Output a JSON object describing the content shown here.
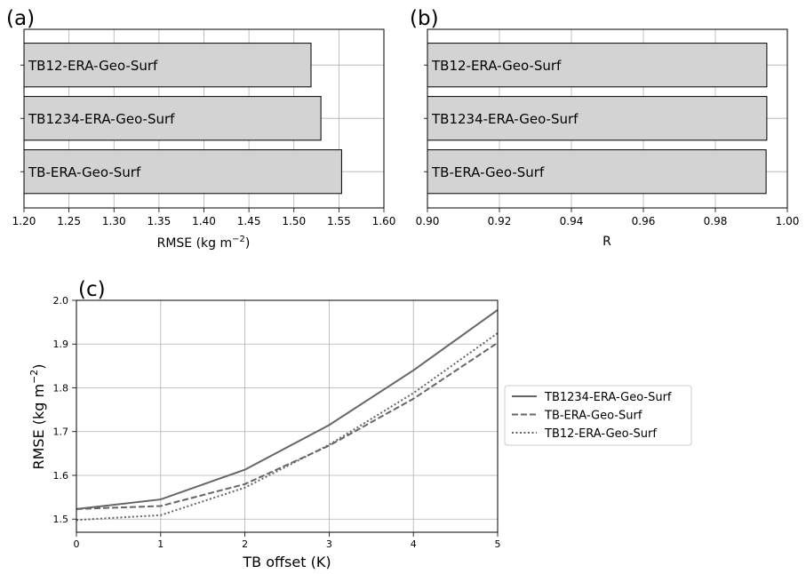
{
  "chart_data": [
    {
      "panel_label": "(a)",
      "type": "bar",
      "orientation": "horizontal",
      "categories": [
        "TB12-ERA-Geo-Surf",
        "TB1234-ERA-Geo-Surf",
        "TB-ERA-Geo-Surf"
      ],
      "values": [
        1.519,
        1.53,
        1.553
      ],
      "xlabel": "RMSE (kg m",
      "xlabel_sup": "−2",
      "xlabel_end": ")",
      "xlim": [
        1.2,
        1.6
      ],
      "xticks": [
        "1.20",
        "1.25",
        "1.30",
        "1.35",
        "1.40",
        "1.45",
        "1.50",
        "1.55",
        "1.60"
      ],
      "grid": true,
      "bar_color": "#d3d3d3"
    },
    {
      "panel_label": "(b)",
      "type": "bar",
      "orientation": "horizontal",
      "categories": [
        "TB12-ERA-Geo-Surf",
        "TB1234-ERA-Geo-Surf",
        "TB-ERA-Geo-Surf"
      ],
      "values": [
        0.9943,
        0.9943,
        0.9941
      ],
      "xlabel": "R",
      "xlim": [
        0.9,
        1.0
      ],
      "xticks": [
        "0.90",
        "0.92",
        "0.94",
        "0.96",
        "0.98",
        "1.00"
      ],
      "grid": true,
      "bar_color": "#d3d3d3"
    },
    {
      "panel_label": "(c)",
      "type": "line",
      "x": [
        0,
        1,
        2,
        3,
        4,
        5
      ],
      "xlabel": "TB offset (K)",
      "ylabel": "RMSE (kg m",
      "ylabel_sup": "−2",
      "ylabel_end": ")",
      "xlim": [
        0,
        5
      ],
      "ylim": [
        1.47,
        2.0
      ],
      "xticks": [
        "0",
        "1",
        "2",
        "3",
        "4",
        "5"
      ],
      "yticks": [
        "1.5",
        "1.6",
        "1.7",
        "1.8",
        "1.9",
        "2.0"
      ],
      "grid": true,
      "legend_position": "outside right",
      "series": [
        {
          "name": "TB1234-ERA-Geo-Surf",
          "values": [
            1.523,
            1.545,
            1.613,
            1.715,
            1.84,
            1.978
          ],
          "color": "#666666",
          "style": "solid"
        },
        {
          "name": "TB-ERA-Geo-Surf",
          "values": [
            1.523,
            1.53,
            1.58,
            1.668,
            1.775,
            1.903
          ],
          "color": "#666666",
          "style": "dashed"
        },
        {
          "name": "TB12-ERA-Geo-Surf",
          "values": [
            1.498,
            1.509,
            1.572,
            1.67,
            1.788,
            1.925
          ],
          "color": "#666666",
          "style": "dotted"
        }
      ]
    }
  ]
}
